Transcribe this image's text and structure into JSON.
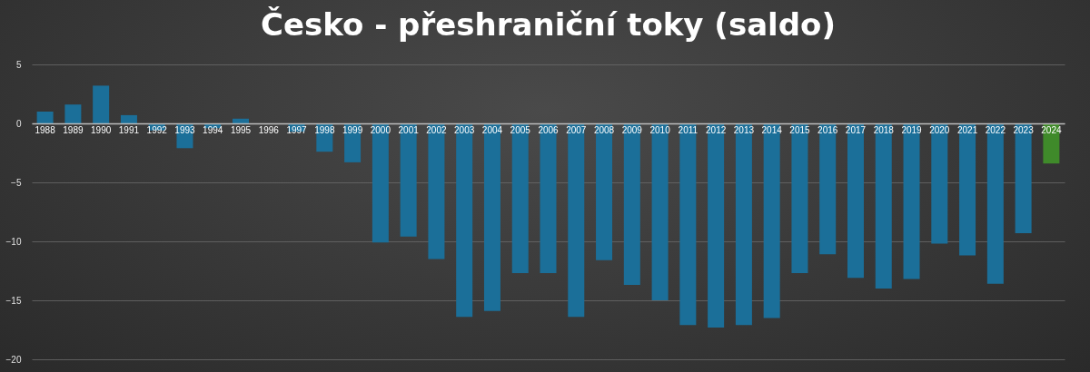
{
  "chart_data": {
    "type": "bar",
    "title": "Česko - přeshraniční toky (saldo)",
    "categories": [
      "1988",
      "1989",
      "1990",
      "1991",
      "1992",
      "1993",
      "1994",
      "1995",
      "1996",
      "1997",
      "1998",
      "1999",
      "2000",
      "2001",
      "2002",
      "2003",
      "2004",
      "2005",
      "2006",
      "2007",
      "2008",
      "2009",
      "2010",
      "2011",
      "2012",
      "2013",
      "2014",
      "2015",
      "2016",
      "2017",
      "2018",
      "2019",
      "2020",
      "2021",
      "2022",
      "2023",
      "2024"
    ],
    "values": [
      1.0,
      1.6,
      3.2,
      0.7,
      -0.6,
      -2.1,
      -0.4,
      0.4,
      0,
      -0.7,
      -2.4,
      -3.3,
      -10.1,
      -9.6,
      -11.5,
      -16.4,
      -15.9,
      -12.7,
      -12.7,
      -16.4,
      -11.6,
      -13.7,
      -15.0,
      -17.1,
      -17.3,
      -17.1,
      -16.5,
      -12.7,
      -11.1,
      -13.1,
      -14.0,
      -13.2,
      -10.2,
      -11.2,
      -13.6,
      -9.3,
      -3.4
    ],
    "colors": [
      "#1b6f99",
      "#1b6f99",
      "#1b6f99",
      "#1b6f99",
      "#1b6f99",
      "#1b6f99",
      "#1b6f99",
      "#1b6f99",
      "#1b6f99",
      "#1b6f99",
      "#1b6f99",
      "#1b6f99",
      "#1b6f99",
      "#1b6f99",
      "#1b6f99",
      "#1b6f99",
      "#1b6f99",
      "#1b6f99",
      "#1b6f99",
      "#1b6f99",
      "#1b6f99",
      "#1b6f99",
      "#1b6f99",
      "#1b6f99",
      "#1b6f99",
      "#1b6f99",
      "#1b6f99",
      "#1b6f99",
      "#1b6f99",
      "#1b6f99",
      "#1b6f99",
      "#1b6f99",
      "#1b6f99",
      "#1b6f99",
      "#1b6f99",
      "#1b6f99",
      "#3f8a2a"
    ],
    "ylim": [
      -20,
      5
    ],
    "yticks": [
      -20,
      -15,
      -10,
      -5,
      0,
      5
    ],
    "grid": "y",
    "legend": false
  }
}
